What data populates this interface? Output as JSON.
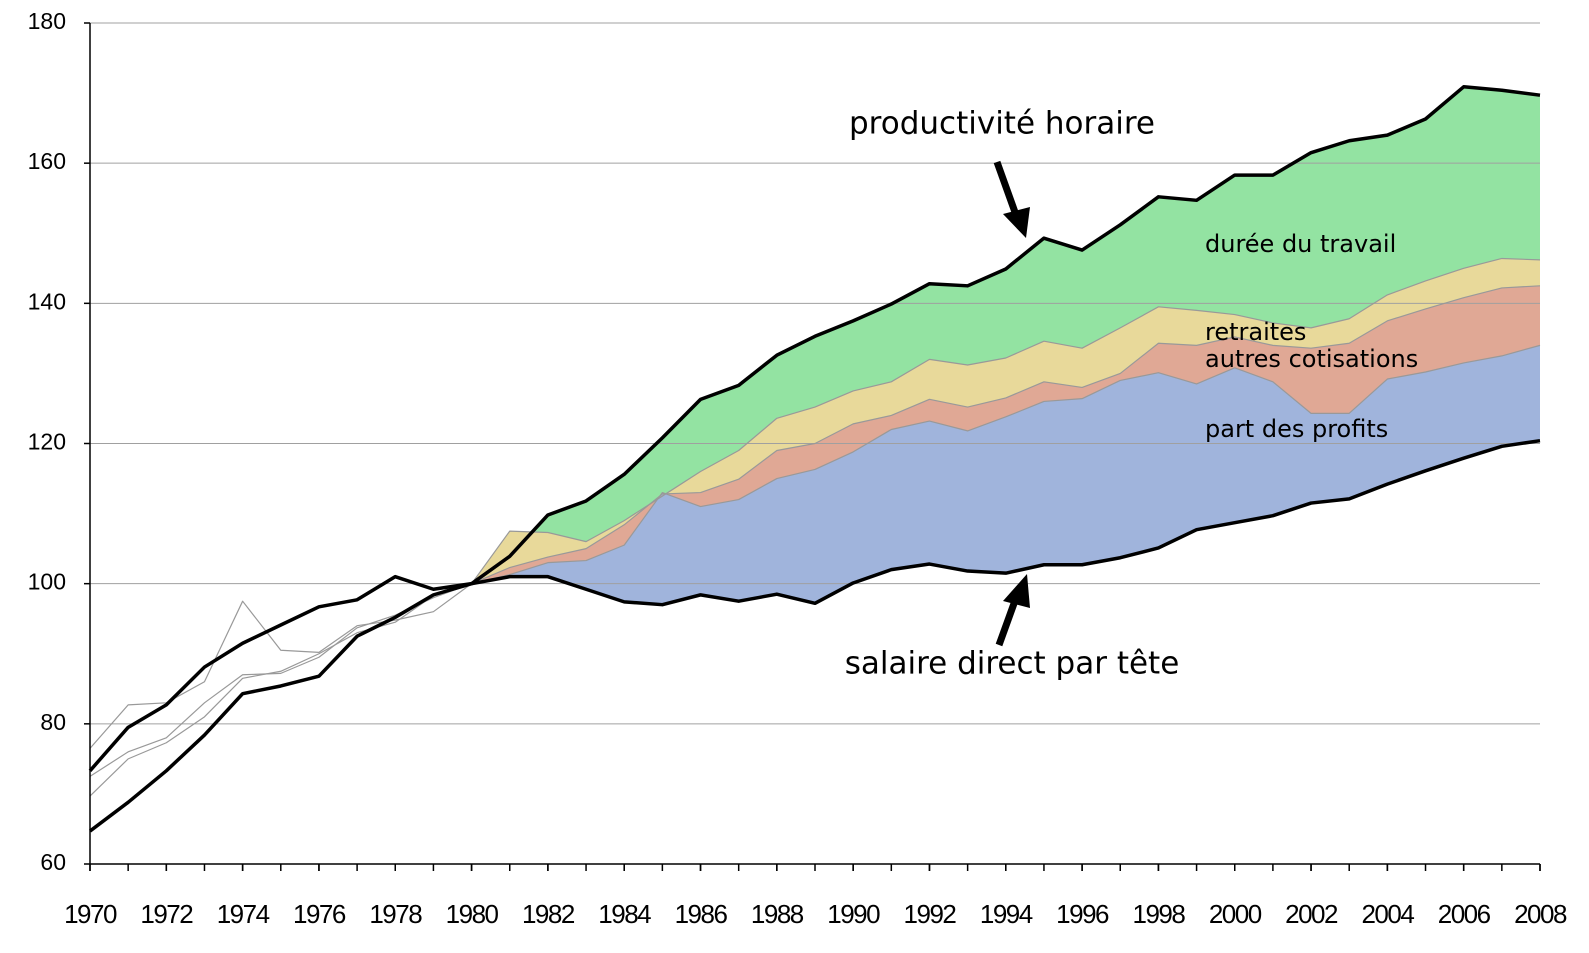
{
  "chart_data": {
    "type": "line",
    "x": [
      1970,
      1971,
      1972,
      1973,
      1974,
      1975,
      1976,
      1977,
      1978,
      1979,
      1980,
      1981,
      1982,
      1983,
      1984,
      1985,
      1986,
      1987,
      1988,
      1989,
      1990,
      1991,
      1992,
      1993,
      1994,
      1995,
      1996,
      1997,
      1998,
      1999,
      2000,
      2001,
      2002,
      2003,
      2004,
      2005,
      2006,
      2007,
      2008
    ],
    "xlim": [
      1970,
      2008
    ],
    "xticks": [
      1970,
      1972,
      1974,
      1976,
      1978,
      1980,
      1982,
      1984,
      1986,
      1988,
      1990,
      1992,
      1994,
      1996,
      1998,
      2000,
      2002,
      2004,
      2006,
      2008
    ],
    "ylim": [
      60,
      180
    ],
    "yticks": [
      60,
      80,
      100,
      120,
      140,
      160,
      180
    ],
    "grid": true,
    "series": [
      {
        "name": "productivité horaire",
        "color": "#000000",
        "width": 3.5,
        "values": [
          64.7,
          68.8,
          73.3,
          78.4,
          84.3,
          85.4,
          86.8,
          92.5,
          95.2,
          98.4,
          100,
          103.9,
          109.8,
          111.8,
          115.6,
          120.8,
          126.3,
          128.3,
          132.6,
          135.3,
          137.5,
          139.9,
          142.8,
          142.5,
          144.9,
          149.3,
          147.6,
          151.2,
          155.2,
          154.7,
          158.3,
          158.3,
          161.5,
          163.2,
          164,
          166.3,
          170.9,
          170.4,
          169.7
        ]
      },
      {
        "color": "#999999",
        "width": 1.2,
        "values": [
          76.5,
          82.7,
          83,
          86,
          97.5,
          90.5,
          90.2,
          94,
          94.8,
          96,
          100,
          107.5,
          107.3,
          106,
          109,
          112.5,
          116,
          119,
          123.6,
          125.2,
          127.5,
          128.8,
          132,
          131.2,
          132.2,
          134.6,
          133.6,
          136.5,
          139.5,
          139,
          138.4,
          137.2,
          136.5,
          137.8,
          141.2,
          143.2,
          145,
          146.4,
          146.2
        ]
      },
      {
        "color": "#999999",
        "width": 1.2,
        "values": [
          72.5,
          76,
          78,
          83,
          87,
          87.2,
          89.5,
          93.7,
          95.5,
          98,
          100,
          102.3,
          103.8,
          105,
          108.4,
          112.8,
          113,
          114.9,
          119,
          120,
          122.8,
          124,
          126.3,
          125.2,
          126.5,
          128.8,
          128,
          130,
          134.3,
          134,
          135.2,
          134,
          133.6,
          134.3,
          137.5,
          139.2,
          140.8,
          142.2,
          142.5
        ]
      },
      {
        "color": "#999999",
        "width": 1.2,
        "values": [
          69.7,
          75,
          77.3,
          81,
          86.5,
          87.5,
          90,
          93,
          94.5,
          98.3,
          100,
          101.3,
          103,
          103.3,
          105.5,
          113,
          111,
          112,
          115,
          116.3,
          118.8,
          122,
          123.2,
          121.8,
          123.8,
          126,
          126.4,
          129,
          130.1,
          128.5,
          130.8,
          128.8,
          124.3,
          124.3,
          129.2,
          130.2,
          131.5,
          132.5,
          134
        ]
      },
      {
        "name": "salaire direct par tête",
        "color": "#000000",
        "width": 3.5,
        "values": [
          73.3,
          79.5,
          82.7,
          88.1,
          91.5,
          94.1,
          96.7,
          97.7,
          101,
          99.2,
          100,
          101,
          101,
          99.2,
          97.4,
          97,
          98.4,
          97.5,
          98.5,
          97.2,
          100.1,
          102,
          102.8,
          101.8,
          101.5,
          102.7,
          102.7,
          103.7,
          105.1,
          107.7,
          108.7,
          109.7,
          111.5,
          112.1,
          114.2,
          116.1,
          117.9,
          119.6,
          120.4
        ]
      }
    ],
    "fill_from": 1980,
    "bands": [
      {
        "label": "durée du travail",
        "color": "#93e3a2"
      },
      {
        "label": "retraites",
        "color": "#e8d99a"
      },
      {
        "label": "autres cotisations",
        "color": "#e0a895"
      },
      {
        "label": "part des profits",
        "color": "#a0b4dc"
      }
    ]
  }
}
